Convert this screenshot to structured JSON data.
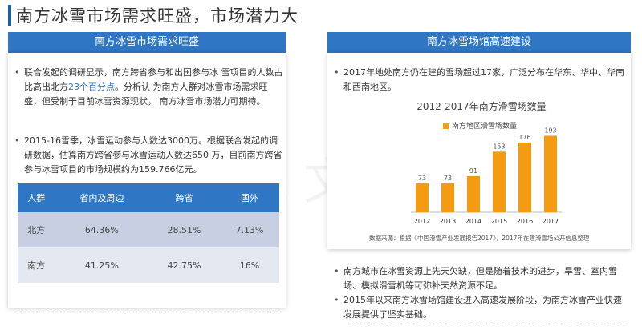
{
  "page": {
    "title": "南方冰雪市场需求旺盛，市场潜力大"
  },
  "watermark": "晋泉文旅",
  "left": {
    "header": "南方冰雪市场需求旺盛",
    "bullet1": {
      "pre": "联合发起的调研显示，南方跨省参与和出国参与冰 雪项目的人数占比高出北方",
      "highlight": "23个百分点",
      "post": "。分析认 为南方人群对冰雪市场需求旺盛，但受制于目前冰雪资源现状，  南方冰雪市场潜力可期待。"
    },
    "bullet2": "2015-16雪季，冰雪运动参与人数达3000万。根据联合发起的调研数据，估算南方跨省参与冰雪运动人数达650  万，目前南方跨省参与冰雪项目的市场规模约为159.766亿元。",
    "table": {
      "headers": [
        "人群",
        "省内及周边",
        "跨省",
        "国外"
      ],
      "rows": [
        [
          "北方",
          "64.36%",
          "28.51%",
          "7.13%"
        ],
        [
          "南方",
          "41.25%",
          "42.75%",
          "16%"
        ]
      ]
    }
  },
  "right": {
    "header": "南方冰雪场馆高速建设",
    "bullet1": "2017年地处南方仍在建的雪场超过17家，广泛分布在华东、华中、华南和西南地区。",
    "bullet2": "南方城市在冰雪资源上先天欠缺，但是随着技术的进步，旱雪、室内雪场、模拟滑雪机等可弥补天然资源不足。",
    "bullet3": "2015年以来南方冰雪场馆建设进入高速发展阶段，为南方冰雪产业快速发展提供了坚实基础。",
    "source": "数据来源：根据《中国滑雪产业发展报告2017》，2017年在建滑雪场公开信息整理"
  },
  "chart_data": {
    "type": "bar",
    "title": "2012-2017年南方滑雪场数量",
    "legend": "南方地区滑雪场数量",
    "legend_position": "top",
    "categories": [
      "2012",
      "2013",
      "2014",
      "2015",
      "2016",
      "2017"
    ],
    "values": [
      73,
      73,
      91,
      153,
      176,
      193
    ],
    "ylim": [
      0,
      200
    ],
    "grid": false,
    "color": "#f39c12",
    "label_color": "#555555"
  }
}
